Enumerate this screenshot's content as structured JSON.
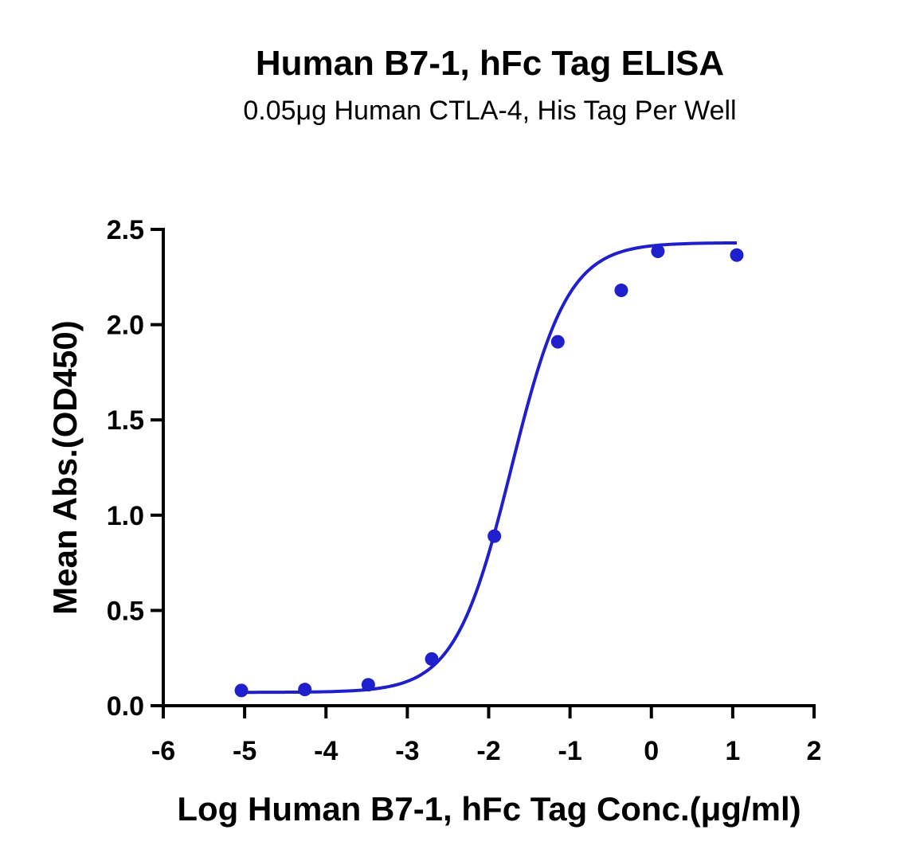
{
  "chart_data": {
    "type": "scatter",
    "title": "Human B7-1, hFc Tag ELISA",
    "subtitle": "0.05μg Human CTLA-4, His Tag Per Well",
    "xlabel": "Log Human B7-1, hFc Tag Conc.(μg/ml)",
    "ylabel": "Mean Abs.(OD450)",
    "xlim": [
      -6,
      2
    ],
    "ylim": [
      0,
      2.5
    ],
    "x_ticks": [
      "-6",
      "-5",
      "-4",
      "-3",
      "-2",
      "-1",
      "0",
      "1",
      "2"
    ],
    "y_ticks": [
      "0.0",
      "0.5",
      "1.0",
      "1.5",
      "2.0",
      "2.5"
    ],
    "grid": false,
    "legend": "none",
    "series": [
      {
        "color": "#1f1fcc",
        "points": [
          {
            "x": -5.04,
            "y": 0.08
          },
          {
            "x": -4.26,
            "y": 0.085
          },
          {
            "x": -3.48,
            "y": 0.11
          },
          {
            "x": -2.7,
            "y": 0.245
          },
          {
            "x": -1.93,
            "y": 0.89
          },
          {
            "x": -1.15,
            "y": 1.91
          },
          {
            "x": -0.37,
            "y": 2.18
          },
          {
            "x": 0.08,
            "y": 2.385
          },
          {
            "x": 1.05,
            "y": 2.365
          }
        ],
        "fit": {
          "model": "4PL",
          "bottom": 0.07,
          "top": 2.43,
          "log_ec50": -1.72,
          "hill_slope": 1.25,
          "x_range": [
            -5.04,
            1.05
          ]
        }
      }
    ]
  }
}
